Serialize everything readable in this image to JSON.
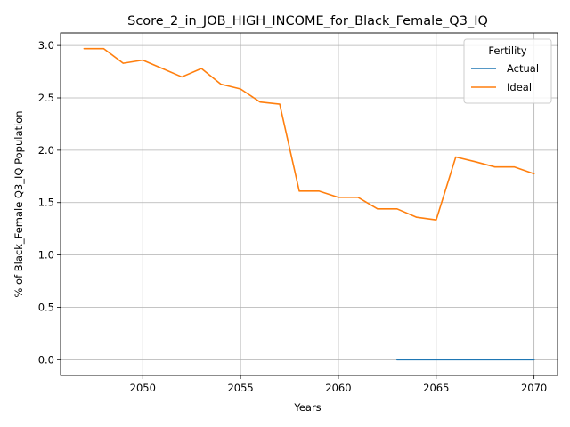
{
  "chart_data": {
    "type": "line",
    "title": "Score_2_in_JOB_HIGH_INCOME_for_Black_Female_Q3_IQ",
    "xlabel": "Years",
    "ylabel": "% of Black_Female Q3_IQ Population",
    "xlim": [
      2045.8,
      2071.2
    ],
    "ylim": [
      -0.15,
      3.12
    ],
    "x_ticks": [
      2050,
      2055,
      2060,
      2065,
      2070
    ],
    "y_ticks": [
      0.0,
      0.5,
      1.0,
      1.5,
      2.0,
      2.5,
      3.0
    ],
    "x_tick_labels": [
      "2050",
      "2055",
      "2060",
      "2065",
      "2070"
    ],
    "y_tick_labels": [
      "0.0",
      "0.5",
      "1.0",
      "1.5",
      "2.0",
      "2.5",
      "3.0"
    ],
    "grid": true,
    "legend": {
      "title": "Fertility",
      "placement": "top-right"
    },
    "series": [
      {
        "name": "Actual",
        "color": "#1f77b4",
        "x": [
          2063,
          2064,
          2065,
          2066,
          2067,
          2068,
          2069,
          2070
        ],
        "y": [
          0,
          0,
          0,
          0,
          0,
          0,
          0,
          0
        ]
      },
      {
        "name": "Ideal",
        "color": "#ff7f0e",
        "x": [
          2047,
          2048,
          2049,
          2050,
          2051,
          2052,
          2053,
          2054,
          2055,
          2056,
          2057,
          2058,
          2059,
          2060,
          2061,
          2062,
          2063,
          2064,
          2065,
          2066,
          2067,
          2068,
          2069,
          2070
        ],
        "y": [
          2.97,
          2.97,
          2.83,
          2.86,
          2.78,
          2.7,
          2.78,
          2.63,
          2.585,
          2.46,
          2.44,
          1.61,
          1.61,
          1.55,
          1.55,
          1.44,
          1.44,
          1.36,
          1.335,
          1.935,
          1.89,
          1.84,
          1.84,
          1.775
        ]
      }
    ]
  }
}
